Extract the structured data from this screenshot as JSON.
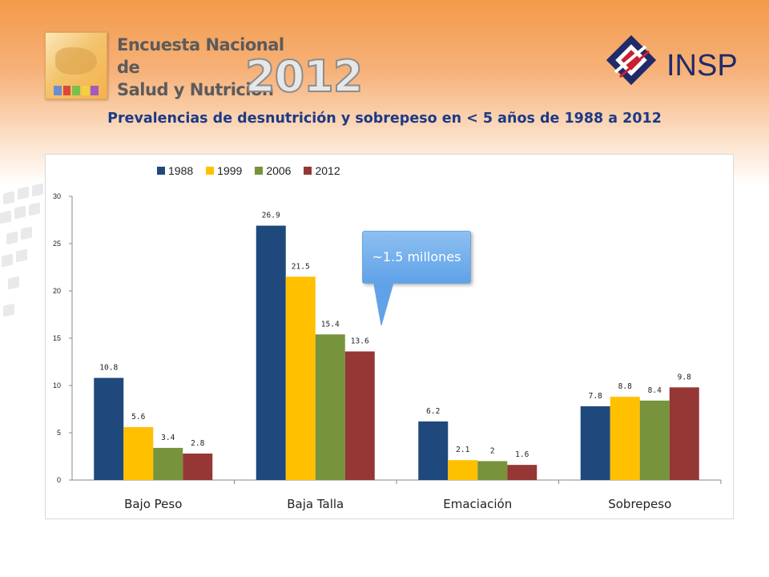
{
  "header": {
    "survey_line1": "Encuesta Nacional de",
    "survey_line2": "Salud y Nutrición",
    "survey_year": "2012",
    "institute": "INSP"
  },
  "slide_title": "Prevalencias de desnutrición y sobrepeso en < 5 años de 1988 a 2012",
  "callout": {
    "text": "~1.5 millones"
  },
  "colors": {
    "1988": "#1f497d",
    "1999": "#ffc000",
    "2006": "#77933c",
    "2012": "#953735",
    "callout": "#5fa2e8",
    "title": "#1c3a86"
  },
  "chart_data": {
    "type": "bar",
    "title": "",
    "xlabel": "",
    "ylabel": "",
    "categories": [
      "Bajo Peso",
      "Baja Talla",
      "Emaciación",
      "Sobrepeso"
    ],
    "series": [
      {
        "name": "1988",
        "values": [
          10.8,
          26.9,
          6.2,
          7.8
        ]
      },
      {
        "name": "1999",
        "values": [
          5.6,
          21.5,
          2.1,
          8.8
        ]
      },
      {
        "name": "2006",
        "values": [
          3.4,
          15.4,
          2,
          8.4
        ]
      },
      {
        "name": "2012",
        "values": [
          2.8,
          13.6,
          1.6,
          9.8
        ]
      }
    ],
    "ylim": [
      0,
      30
    ],
    "yticks": [
      0,
      5,
      10,
      15,
      20,
      25,
      30
    ],
    "grid": false,
    "legend": "top"
  }
}
